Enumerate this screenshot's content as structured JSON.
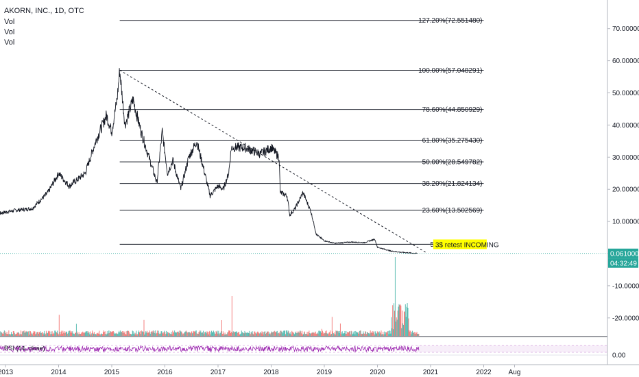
{
  "header": {
    "symbol_line": "AKORN, INC., 1D, OTC",
    "volume_lines": [
      "Vol",
      "Vol",
      "Vol"
    ]
  },
  "rsi_label": "RSI (14, close)",
  "price_badge": {
    "value": "0.061000",
    "countdown": "04:32:49",
    "color": "#26a69a"
  },
  "annotation": {
    "text": "3$ retest INCOMING",
    "color": "#ffff00"
  },
  "chart_data": {
    "type": "line",
    "title": "AKORN, INC., 1D, OTC",
    "ylim_price": [
      0,
      80
    ],
    "y_ticks": [
      {
        "value": 70,
        "label": "70.000000"
      },
      {
        "value": 60,
        "label": "60.000000"
      },
      {
        "value": 50,
        "label": "50.000000"
      },
      {
        "value": 40,
        "label": "40.000000"
      },
      {
        "value": 30,
        "label": "30.000000"
      },
      {
        "value": 20,
        "label": "20.000000"
      },
      {
        "value": 10,
        "label": "10.000000"
      },
      {
        "value": -10,
        "label": "-10.000000"
      },
      {
        "value": -20,
        "label": "-20.000000"
      }
    ],
    "rsi_tick": {
      "value": 0,
      "label": "0.00"
    },
    "x_ticks": [
      {
        "t": 2013.0,
        "label": "2013"
      },
      {
        "t": 2014.0,
        "label": "2014"
      },
      {
        "t": 2015.0,
        "label": "2015"
      },
      {
        "t": 2016.0,
        "label": "2016"
      },
      {
        "t": 2017.0,
        "label": "2017"
      },
      {
        "t": 2018.0,
        "label": "2018"
      },
      {
        "t": 2019.0,
        "label": "2019"
      },
      {
        "t": 2020.0,
        "label": "2020"
      },
      {
        "t": 2021.0,
        "label": "2021"
      },
      {
        "t": 2022.0,
        "label": "2022"
      },
      {
        "t": 2022.58,
        "label": "Aug"
      }
    ],
    "fib_levels": [
      {
        "value": 72.55148,
        "label": "127.20%(72.551480)"
      },
      {
        "value": 57.048291,
        "label": "100.00%(57.048291)"
      },
      {
        "value": 44.850929,
        "label": "78.60%(44.850929)"
      },
      {
        "value": 35.27543,
        "label": "61.80%(35.275430)"
      },
      {
        "value": 28.549782,
        "label": "50.00%(28.549782)"
      },
      {
        "value": 21.824134,
        "label": "38.20%(21.824134)"
      },
      {
        "value": 13.502569,
        "label": "23.60%(13.502569)"
      },
      {
        "value": 2.901124,
        "label": "5.00%(2.901124)"
      }
    ],
    "fib_range": [
      2015.15,
      2022.0
    ],
    "trendline": [
      {
        "t": 2015.15,
        "v": 57.05
      },
      {
        "t": 2020.92,
        "v": 0.3
      }
    ],
    "price_series": [
      {
        "t": 2012.7,
        "v": 12
      },
      {
        "t": 2013.2,
        "v": 13.5
      },
      {
        "t": 2013.5,
        "v": 14
      },
      {
        "t": 2013.8,
        "v": 19
      },
      {
        "t": 2014.0,
        "v": 25
      },
      {
        "t": 2014.2,
        "v": 21
      },
      {
        "t": 2014.5,
        "v": 25
      },
      {
        "t": 2014.7,
        "v": 35
      },
      {
        "t": 2014.9,
        "v": 43
      },
      {
        "t": 2015.0,
        "v": 38
      },
      {
        "t": 2015.1,
        "v": 48
      },
      {
        "t": 2015.15,
        "v": 57
      },
      {
        "t": 2015.25,
        "v": 40
      },
      {
        "t": 2015.4,
        "v": 48
      },
      {
        "t": 2015.55,
        "v": 38
      },
      {
        "t": 2015.7,
        "v": 30
      },
      {
        "t": 2015.85,
        "v": 22
      },
      {
        "t": 2015.95,
        "v": 38
      },
      {
        "t": 2016.05,
        "v": 25
      },
      {
        "t": 2016.15,
        "v": 29
      },
      {
        "t": 2016.3,
        "v": 20
      },
      {
        "t": 2016.45,
        "v": 30
      },
      {
        "t": 2016.6,
        "v": 35
      },
      {
        "t": 2016.75,
        "v": 25
      },
      {
        "t": 2016.85,
        "v": 18
      },
      {
        "t": 2017.0,
        "v": 21
      },
      {
        "t": 2017.1,
        "v": 20
      },
      {
        "t": 2017.2,
        "v": 25
      },
      {
        "t": 2017.25,
        "v": 33
      },
      {
        "t": 2017.5,
        "v": 33
      },
      {
        "t": 2017.8,
        "v": 31
      },
      {
        "t": 2018.0,
        "v": 33
      },
      {
        "t": 2018.15,
        "v": 30
      },
      {
        "t": 2018.17,
        "v": 19
      },
      {
        "t": 2018.3,
        "v": 18
      },
      {
        "t": 2018.35,
        "v": 12
      },
      {
        "t": 2018.45,
        "v": 14
      },
      {
        "t": 2018.6,
        "v": 19
      },
      {
        "t": 2018.75,
        "v": 13
      },
      {
        "t": 2018.85,
        "v": 6
      },
      {
        "t": 2019.0,
        "v": 4
      },
      {
        "t": 2019.2,
        "v": 3.2
      },
      {
        "t": 2019.5,
        "v": 3.6
      },
      {
        "t": 2019.75,
        "v": 3.4
      },
      {
        "t": 2019.95,
        "v": 4.5
      },
      {
        "t": 2020.0,
        "v": 2.0
      },
      {
        "t": 2020.25,
        "v": 0.8
      },
      {
        "t": 2020.45,
        "v": 0.4
      },
      {
        "t": 2020.75,
        "v": 0.061
      }
    ]
  }
}
